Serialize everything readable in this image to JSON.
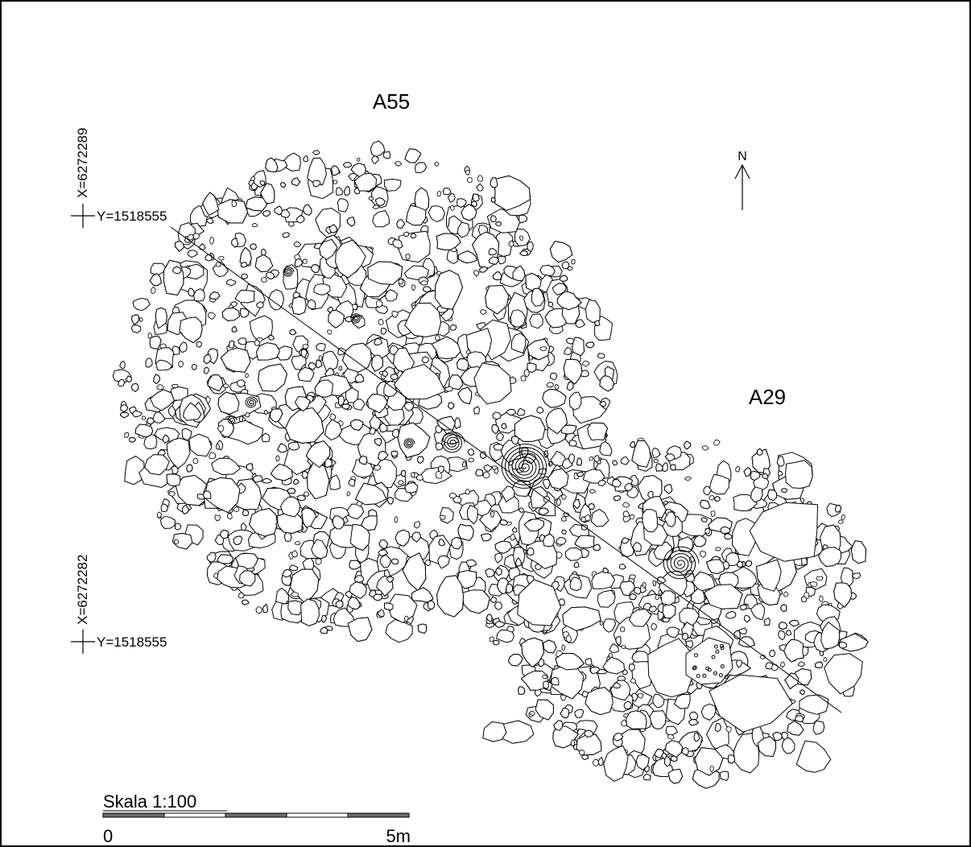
{
  "map": {
    "features": [
      {
        "id": "A55",
        "label": "A55"
      },
      {
        "id": "A29",
        "label": "A29"
      }
    ],
    "north_label": "N",
    "grid_points": [
      {
        "x_label": "X=6272289",
        "y_label": "Y=1518555"
      },
      {
        "x_label": "X=6272282",
        "y_label": "Y=1518555"
      }
    ],
    "scale": {
      "title": "Skala 1:100",
      "start_label": "0",
      "end_label": "5m"
    },
    "colors": {
      "line": "#000000",
      "background": "#ffffff",
      "scale_fill": "#6b6b6b"
    }
  }
}
